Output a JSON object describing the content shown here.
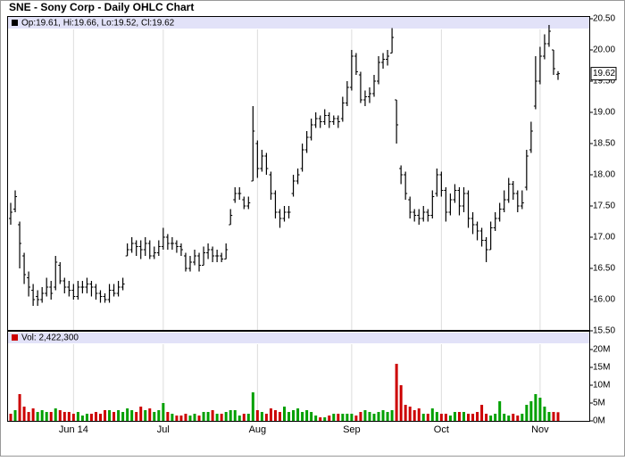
{
  "chart_data": {
    "type": "ohlc",
    "title": "SNE - Sony Corp - Daily OHLC Chart",
    "legend_label": "Op:19.61, Hi:19.66, Lo:19.52, Cl:19.62",
    "color": "#000000",
    "categories": [
      null,
      null,
      null,
      null,
      null,
      null,
      null,
      null,
      null,
      null,
      null,
      null,
      null,
      null,
      "Jun 14",
      null,
      null,
      null,
      null,
      null,
      null,
      null,
      null,
      null,
      null,
      null,
      null,
      null,
      null,
      null,
      null,
      null,
      null,
      null,
      "Jul",
      null,
      null,
      null,
      null,
      null,
      null,
      null,
      null,
      null,
      null,
      null,
      null,
      null,
      null,
      null,
      null,
      null,
      null,
      null,
      null,
      "Aug",
      null,
      null,
      null,
      null,
      null,
      null,
      null,
      null,
      null,
      null,
      null,
      null,
      null,
      null,
      null,
      null,
      null,
      null,
      null,
      null,
      "Sep",
      null,
      null,
      null,
      null,
      null,
      null,
      null,
      null,
      null,
      null,
      null,
      null,
      null,
      null,
      null,
      null,
      null,
      null,
      null,
      "Oct",
      null,
      null,
      null,
      null,
      null,
      null,
      null,
      null,
      null,
      null,
      null,
      null,
      null,
      null,
      null,
      null,
      null,
      null,
      null,
      null,
      null,
      "Nov",
      null,
      null,
      null,
      null
    ],
    "open": [
      17.3,
      17.45,
      17.2,
      16.7,
      16.35,
      16.15,
      16.05,
      16.0,
      16.1,
      16.2,
      16.2,
      16.55,
      16.3,
      16.2,
      16.15,
      16.05,
      16.2,
      16.2,
      16.25,
      16.2,
      16.1,
      16.05,
      16.0,
      16.15,
      16.1,
      16.2,
      16.7,
      16.8,
      16.9,
      16.85,
      16.8,
      16.9,
      16.7,
      16.75,
      16.85,
      17.0,
      16.9,
      16.9,
      16.85,
      16.7,
      16.5,
      16.6,
      16.7,
      16.55,
      16.75,
      16.8,
      16.7,
      16.7,
      16.65,
      17.2,
      17.6,
      17.7,
      17.6,
      17.5,
      17.9,
      18.5,
      18.1,
      18.3,
      18.0,
      17.7,
      17.4,
      17.3,
      17.4,
      17.7,
      17.9,
      18.1,
      18.4,
      18.6,
      18.8,
      18.9,
      18.85,
      18.95,
      18.85,
      18.9,
      18.9,
      19.15,
      19.4,
      19.9,
      19.6,
      19.2,
      19.25,
      19.3,
      19.5,
      19.8,
      19.85,
      19.95,
      19.2,
      18.1,
      18.0,
      17.6,
      17.4,
      17.35,
      17.3,
      17.4,
      17.35,
      17.7,
      18.0,
      17.75,
      17.4,
      17.6,
      17.75,
      17.5,
      17.7,
      17.3,
      17.2,
      17.1,
      16.95,
      16.8,
      17.15,
      17.3,
      17.45,
      17.6,
      17.85,
      17.7,
      17.5,
      17.8,
      18.4,
      19.1,
      19.5,
      19.9,
      20.1,
      20.0,
      19.61
    ],
    "high": [
      17.55,
      17.75,
      17.25,
      16.75,
      16.45,
      16.25,
      16.15,
      16.2,
      16.35,
      16.3,
      16.7,
      16.6,
      16.35,
      16.3,
      16.25,
      16.3,
      16.3,
      16.35,
      16.3,
      16.25,
      16.15,
      16.1,
      16.25,
      16.25,
      16.3,
      16.35,
      16.9,
      17.0,
      16.95,
      16.95,
      17.0,
      16.95,
      16.85,
      16.95,
      17.15,
      17.05,
      17.0,
      16.95,
      16.9,
      16.75,
      16.7,
      16.8,
      16.75,
      16.85,
      16.9,
      16.85,
      16.8,
      16.75,
      16.9,
      17.45,
      17.8,
      17.8,
      17.65,
      17.65,
      19.1,
      18.55,
      18.4,
      18.35,
      18.05,
      17.75,
      17.45,
      17.5,
      17.5,
      18.0,
      18.1,
      18.5,
      18.7,
      18.9,
      19.0,
      18.95,
      19.05,
      19.0,
      18.95,
      18.95,
      19.25,
      19.5,
      20.0,
      19.95,
      19.65,
      19.35,
      19.4,
      19.6,
      19.9,
      19.95,
      20.0,
      20.35,
      19.2,
      18.15,
      18.05,
      17.65,
      17.45,
      17.45,
      17.5,
      17.45,
      17.75,
      18.1,
      18.05,
      17.8,
      17.7,
      17.85,
      17.8,
      17.8,
      17.75,
      17.4,
      17.25,
      17.15,
      17.0,
      17.25,
      17.4,
      17.55,
      17.75,
      17.95,
      17.9,
      17.75,
      17.75,
      18.4,
      18.85,
      19.9,
      20.05,
      20.25,
      20.4,
      20.0,
      19.66
    ],
    "low": [
      17.2,
      17.4,
      16.5,
      16.25,
      16.05,
      15.9,
      15.9,
      15.95,
      16.05,
      16.0,
      16.15,
      16.25,
      16.1,
      16.05,
      16.0,
      16.0,
      16.1,
      16.1,
      16.05,
      16.0,
      15.95,
      15.95,
      15.95,
      16.05,
      16.05,
      16.15,
      16.7,
      16.75,
      16.7,
      16.65,
      16.7,
      16.65,
      16.65,
      16.7,
      16.8,
      16.8,
      16.8,
      16.75,
      16.7,
      16.45,
      16.45,
      16.55,
      16.45,
      16.55,
      16.65,
      16.6,
      16.6,
      16.6,
      16.65,
      17.2,
      17.55,
      17.6,
      17.45,
      17.45,
      17.9,
      17.95,
      18.05,
      18.0,
      17.6,
      17.3,
      17.15,
      17.25,
      17.3,
      17.65,
      17.85,
      18.05,
      18.35,
      18.55,
      18.75,
      18.75,
      18.8,
      18.75,
      18.8,
      18.75,
      18.85,
      19.1,
      19.35,
      19.6,
      19.15,
      19.1,
      19.15,
      19.25,
      19.45,
      19.7,
      19.75,
      19.95,
      18.5,
      17.85,
      17.6,
      17.3,
      17.25,
      17.2,
      17.25,
      17.25,
      17.3,
      17.65,
      17.65,
      17.25,
      17.35,
      17.55,
      17.35,
      17.4,
      17.15,
      17.05,
      16.95,
      16.85,
      16.6,
      16.8,
      17.1,
      17.25,
      17.4,
      17.55,
      17.6,
      17.4,
      17.45,
      17.75,
      18.35,
      19.05,
      19.45,
      19.85,
      20.05,
      19.6,
      19.52
    ],
    "close": [
      17.4,
      17.65,
      16.9,
      16.4,
      16.2,
      16.0,
      16.0,
      16.1,
      16.2,
      16.1,
      16.6,
      16.3,
      16.2,
      16.15,
      16.05,
      16.2,
      16.2,
      16.25,
      16.2,
      16.1,
      16.05,
      16.0,
      16.15,
      16.1,
      16.2,
      16.25,
      16.8,
      16.9,
      16.85,
      16.8,
      16.9,
      16.7,
      16.75,
      16.85,
      17.0,
      16.9,
      16.9,
      16.85,
      16.8,
      16.5,
      16.6,
      16.7,
      16.55,
      16.75,
      16.8,
      16.7,
      16.7,
      16.65,
      16.8,
      17.35,
      17.7,
      17.7,
      17.5,
      17.55,
      18.7,
      18.1,
      18.3,
      18.1,
      17.7,
      17.4,
      17.3,
      17.4,
      17.4,
      17.9,
      18.0,
      18.4,
      18.6,
      18.8,
      18.9,
      18.85,
      18.95,
      18.85,
      18.9,
      18.85,
      19.15,
      19.4,
      19.9,
      19.65,
      19.2,
      19.25,
      19.3,
      19.5,
      19.8,
      19.85,
      19.9,
      20.2,
      18.8,
      18.0,
      17.7,
      17.4,
      17.35,
      17.3,
      17.4,
      17.35,
      17.65,
      18.0,
      17.75,
      17.4,
      17.6,
      17.75,
      17.5,
      17.7,
      17.3,
      17.2,
      17.1,
      16.95,
      16.8,
      17.15,
      17.3,
      17.45,
      17.6,
      17.85,
      17.7,
      17.5,
      17.55,
      18.3,
      18.7,
      19.5,
      19.9,
      20.1,
      20.3,
      19.7,
      19.62
    ],
    "ylim": [
      15.5,
      20.5
    ],
    "yticks": [
      {
        "value": 15.5,
        "label": "15.50"
      },
      {
        "value": 16,
        "label": "16.00"
      },
      {
        "value": 16.5,
        "label": "16.50"
      },
      {
        "value": 17,
        "label": "17.00"
      },
      {
        "value": 17.5,
        "label": "17.50"
      },
      {
        "value": 18,
        "label": "18.00"
      },
      {
        "value": 18.5,
        "label": "18.50"
      },
      {
        "value": 19,
        "label": "19.00"
      },
      {
        "value": 19.5,
        "label": "19.50"
      },
      {
        "value": 20,
        "label": "20.00"
      },
      {
        "value": 20.5,
        "label": "20.50"
      }
    ],
    "volume": {
      "label": "Vol: 2,422,300",
      "up_color": "#00a000",
      "down_color": "#cc0000",
      "values": [
        2000000,
        3000000,
        7500000,
        4000000,
        2500000,
        3500000,
        2500000,
        3000000,
        2500000,
        2500000,
        3500000,
        3000000,
        2500000,
        2500000,
        2000000,
        2500000,
        1500000,
        2000000,
        2000000,
        2500000,
        2000000,
        3000000,
        3000000,
        2500000,
        3000000,
        2500000,
        3500000,
        3000000,
        2500000,
        4000000,
        3000000,
        3500000,
        2500000,
        3000000,
        5000000,
        2500000,
        2000000,
        1500000,
        1500000,
        2000000,
        1500000,
        2000000,
        1500000,
        2500000,
        2500000,
        3000000,
        2000000,
        2000000,
        2500000,
        3000000,
        3000000,
        1500000,
        2000000,
        2000000,
        8000000,
        3000000,
        2500000,
        2000000,
        3500000,
        3000000,
        2500000,
        4000000,
        2500000,
        3000000,
        3500000,
        2500000,
        3000000,
        2500000,
        1500000,
        1000000,
        1000000,
        1500000,
        2000000,
        2000000,
        2000000,
        2000000,
        2000000,
        1500000,
        2500000,
        3000000,
        2500000,
        2000000,
        2500000,
        3000000,
        2500000,
        3000000,
        16000000,
        10000000,
        4500000,
        4000000,
        3000000,
        3500000,
        2000000,
        2000000,
        3500000,
        2500000,
        2000000,
        2000000,
        1500000,
        2500000,
        2500000,
        2500000,
        2000000,
        2000000,
        2500000,
        4500000,
        2000000,
        1500000,
        2000000,
        5500000,
        2000000,
        1500000,
        2000000,
        1500000,
        2000000,
        4500000,
        5500000,
        7500000,
        6500000,
        4000000,
        2500000,
        2500000,
        2422300
      ],
      "ylim": [
        0,
        25000000
      ],
      "yticks": [
        {
          "value": 0,
          "label": "0M"
        },
        {
          "value": 5000000,
          "label": "5M"
        },
        {
          "value": 10000000,
          "label": "10M"
        },
        {
          "value": 15000000,
          "label": "15M"
        },
        {
          "value": 20000000,
          "label": "20M"
        }
      ]
    }
  }
}
